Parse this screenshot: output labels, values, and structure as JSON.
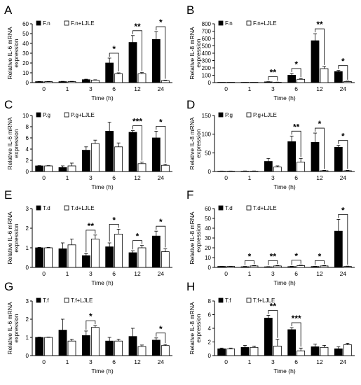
{
  "xlabel": "Time (h)",
  "time_points": [
    "0",
    "1",
    "3",
    "6",
    "12",
    "24"
  ],
  "colors": {
    "treated": "#000000",
    "control": "#ffffff",
    "stroke": "#000000"
  },
  "chart_data": [
    {
      "type": "bar",
      "panel": "A",
      "ylabel": [
        "Relative IL-6 mRNA",
        "expression"
      ],
      "ylim": [
        0,
        60
      ],
      "yticks": [
        0,
        10,
        20,
        30,
        40,
        50,
        60
      ],
      "categories": [
        "0",
        "1",
        "3",
        "6",
        "12",
        "24"
      ],
      "legend_position": "top-left",
      "series": [
        {
          "name": "F.n",
          "values": [
            1,
            1,
            3,
            20,
            41,
            44
          ],
          "errors": [
            0.2,
            0.3,
            0.5,
            5,
            7,
            8
          ]
        },
        {
          "name": "F.n+LJLE",
          "values": [
            1,
            1,
            2.5,
            9,
            9,
            2
          ],
          "errors": [
            0.2,
            0.3,
            0.4,
            1,
            1.5,
            0.5
          ]
        }
      ],
      "significance": [
        {
          "category": "6",
          "label": "*"
        },
        {
          "category": "12",
          "label": "**"
        },
        {
          "category": "24",
          "label": "*"
        }
      ]
    },
    {
      "type": "bar",
      "panel": "B",
      "ylabel": [
        "Relative IL-8 mRNA",
        "expression"
      ],
      "ylim": [
        0,
        800
      ],
      "yticks": [
        0,
        100,
        200,
        300,
        400,
        500,
        600,
        700,
        800
      ],
      "categories": [
        "0",
        "1",
        "3",
        "6",
        "12",
        "24"
      ],
      "legend_position": "top-left",
      "series": [
        {
          "name": "F.n",
          "values": [
            1,
            2,
            10,
            100,
            570,
            150
          ],
          "errors": [
            0.5,
            1,
            3,
            25,
            95,
            15
          ]
        },
        {
          "name": "F.n+LJLE",
          "values": [
            1,
            1,
            5,
            45,
            190,
            15
          ],
          "errors": [
            0.5,
            0.5,
            2,
            10,
            30,
            5
          ]
        }
      ],
      "significance": [
        {
          "category": "3",
          "label": "**"
        },
        {
          "category": "6",
          "label": "*"
        },
        {
          "category": "12",
          "label": "**"
        },
        {
          "category": "24",
          "label": "*"
        }
      ]
    },
    {
      "type": "bar",
      "panel": "C",
      "ylabel": [
        "Relative IL-6 mRNA",
        "expression"
      ],
      "ylim": [
        0,
        10
      ],
      "yticks": [
        0,
        2,
        4,
        6,
        8,
        10
      ],
      "categories": [
        "0",
        "1",
        "3",
        "6",
        "12",
        "24"
      ],
      "legend_position": "top-left",
      "series": [
        {
          "name": "P.g",
          "values": [
            1,
            0.7,
            3.8,
            7.2,
            7.0,
            6.0
          ],
          "errors": [
            0.05,
            0.3,
            0.6,
            1.6,
            0.3,
            1.2
          ]
        },
        {
          "name": "P.g+LJLE",
          "values": [
            1,
            1.0,
            5.0,
            4.4,
            1.4,
            1.1
          ],
          "errors": [
            0.05,
            0.5,
            0.6,
            0.7,
            0.3,
            0.2
          ]
        }
      ],
      "significance": [
        {
          "category": "12",
          "label": "***"
        },
        {
          "category": "24",
          "label": "*"
        }
      ]
    },
    {
      "type": "bar",
      "panel": "D",
      "ylabel": [
        "Relative IL-8 mRNA",
        "expression"
      ],
      "ylim": [
        0,
        150
      ],
      "yticks": [
        0,
        50,
        100,
        150
      ],
      "categories": [
        "0",
        "1",
        "3",
        "6",
        "12",
        "24"
      ],
      "legend_position": "top-left",
      "series": [
        {
          "name": "P.g",
          "values": [
            1,
            1,
            27,
            80,
            78,
            65
          ],
          "errors": [
            0.3,
            0.5,
            8,
            15,
            25,
            5
          ]
        },
        {
          "name": "P.g+LJLE",
          "values": [
            1,
            1,
            12,
            25,
            2,
            2
          ],
          "errors": [
            0.3,
            0.5,
            3,
            10,
            1,
            1
          ]
        }
      ],
      "significance": [
        {
          "category": "6",
          "label": "**"
        },
        {
          "category": "12",
          "label": "*"
        },
        {
          "category": "24",
          "label": "*"
        }
      ]
    },
    {
      "type": "bar",
      "panel": "E",
      "ylabel": [
        "Relative IL-6 mRNA",
        "expression"
      ],
      "ylim": [
        0,
        3
      ],
      "yticks": [
        0,
        1,
        2,
        3
      ],
      "categories": [
        "0",
        "1",
        "3",
        "6",
        "12",
        "24"
      ],
      "legend_position": "top-left",
      "series": [
        {
          "name": "T.d",
          "values": [
            1,
            0.95,
            0.6,
            1.05,
            0.75,
            1.6
          ],
          "errors": [
            0.02,
            0.3,
            0.1,
            0.2,
            0.1,
            0.25
          ]
        },
        {
          "name": "T.d+LJLE",
          "values": [
            1,
            1.15,
            1.45,
            1.7,
            1.0,
            0.8
          ],
          "errors": [
            0.02,
            0.3,
            0.2,
            0.25,
            0.12,
            0.15
          ]
        }
      ],
      "significance": [
        {
          "category": "3",
          "label": "**"
        },
        {
          "category": "6",
          "label": "*"
        },
        {
          "category": "12",
          "label": "*"
        },
        {
          "category": "24",
          "label": "*"
        }
      ]
    },
    {
      "type": "bar",
      "panel": "F",
      "ylabel": [
        "Relative IL-8 mRNA",
        "expression"
      ],
      "ylim": [
        0,
        60
      ],
      "yticks": [
        0,
        10,
        20,
        30,
        40,
        50,
        60
      ],
      "categories": [
        "0",
        "1",
        "3",
        "6",
        "12",
        "24"
      ],
      "legend_position": "top-left",
      "series": [
        {
          "name": "T.d",
          "values": [
            1,
            0.7,
            0.6,
            0.8,
            0.9,
            37
          ],
          "errors": [
            0.2,
            0.3,
            0.2,
            0.3,
            0.3,
            12
          ]
        },
        {
          "name": "T.d+LJLE",
          "values": [
            1,
            1.5,
            1.5,
            1.8,
            1.5,
            1
          ],
          "errors": [
            0.2,
            0.4,
            0.4,
            0.5,
            0.4,
            0.3
          ]
        }
      ],
      "significance": [
        {
          "category": "1",
          "label": "*"
        },
        {
          "category": "3",
          "label": "**"
        },
        {
          "category": "6",
          "label": "*"
        },
        {
          "category": "12",
          "label": "*"
        },
        {
          "category": "24",
          "label": "*"
        }
      ]
    },
    {
      "type": "bar",
      "panel": "G",
      "ylabel": [
        "Relative IL-6 mRNA",
        "expression"
      ],
      "ylim": [
        0,
        3
      ],
      "yticks": [
        0,
        1,
        2,
        3
      ],
      "categories": [
        "0",
        "1",
        "3",
        "6",
        "12",
        "24"
      ],
      "legend_position": "top-left",
      "series": [
        {
          "name": "T.f",
          "values": [
            1,
            1.4,
            1.1,
            0.8,
            1.05,
            0.85
          ],
          "errors": [
            0.02,
            0.6,
            0.25,
            0.2,
            0.45,
            0.12
          ]
        },
        {
          "name": "T.f+LJLE",
          "values": [
            1,
            0.8,
            1.55,
            0.8,
            0.5,
            0.55
          ],
          "errors": [
            0.02,
            0.1,
            0.1,
            0.1,
            0.08,
            0.06
          ]
        }
      ],
      "significance": [
        {
          "category": "3",
          "label": "*"
        },
        {
          "category": "24",
          "label": "*"
        }
      ]
    },
    {
      "type": "bar",
      "panel": "H",
      "ylabel": [
        "Relative IL-8 mRNA",
        "expression"
      ],
      "ylim": [
        0,
        8
      ],
      "yticks": [
        0,
        2,
        4,
        6,
        8
      ],
      "categories": [
        "0",
        "1",
        "3",
        "6",
        "12",
        "24"
      ],
      "legend_position": "top-left",
      "series": [
        {
          "name": "T.f",
          "values": [
            1,
            1.2,
            5.5,
            3.8,
            1.3,
            1.0
          ],
          "errors": [
            0.1,
            0.3,
            0.4,
            0.3,
            0.4,
            0.3
          ]
        },
        {
          "name": "T.f+LJLE",
          "values": [
            1,
            1.2,
            1.4,
            0.7,
            1.2,
            1.6
          ],
          "errors": [
            0.1,
            0.2,
            1.0,
            0.4,
            0.3,
            0.2
          ]
        }
      ],
      "significance": [
        {
          "category": "3",
          "label": "**"
        },
        {
          "category": "6",
          "label": "***"
        }
      ]
    }
  ]
}
